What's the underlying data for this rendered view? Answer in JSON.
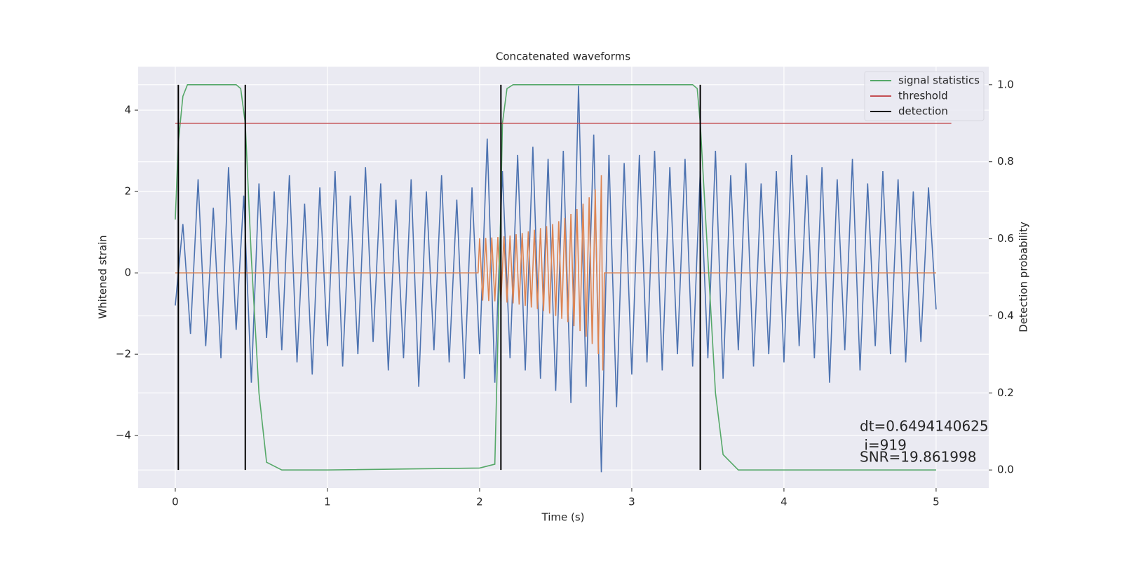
{
  "chart_data": {
    "type": "line",
    "title": "Concatenated waveforms",
    "xlabel": "Time (s)",
    "ylabel": "Whitened strain",
    "y2label": "Detection probability",
    "xlim": [
      -0.244,
      5.346
    ],
    "ylim": [
      -5.29,
      5.07
    ],
    "y2lim": [
      -0.047,
      1.047
    ],
    "xticks": [
      0,
      1,
      2,
      3,
      4,
      5
    ],
    "yticks": [
      {
        "value": -4,
        "label": "−4"
      },
      {
        "value": -2,
        "label": "−2"
      },
      0,
      2,
      4
    ],
    "y2ticks": [
      {
        "value": 0,
        "label": "0.0"
      },
      {
        "value": 0.2,
        "label": "0.2"
      },
      {
        "value": 0.4,
        "label": "0.4"
      },
      {
        "value": 0.6,
        "label": "0.6"
      },
      {
        "value": 0.8,
        "label": "0.8"
      },
      {
        "value": 1,
        "label": "1.0"
      }
    ],
    "grid": true,
    "legend": "upper right",
    "annotations": [
      "dt=0.6494140625",
      " i=919",
      "SNR=19.861998"
    ],
    "series": [
      {
        "color": "#4c72b0",
        "x": [
          0,
          0.05,
          0.1,
          0.15,
          0.2,
          0.25,
          0.3,
          0.35,
          0.4,
          0.45,
          0.5,
          0.55,
          0.6,
          0.65,
          0.7,
          0.75,
          0.8,
          0.85,
          0.9,
          0.95,
          1,
          1.05,
          1.1,
          1.15,
          1.2,
          1.25,
          1.3,
          1.35,
          1.4,
          1.45,
          1.5,
          1.55,
          1.6,
          1.65,
          1.7,
          1.75,
          1.8,
          1.85,
          1.9,
          1.95,
          2,
          2.05,
          2.1,
          2.15,
          2.2,
          2.25,
          2.3,
          2.35,
          2.4,
          2.45,
          2.5,
          2.55,
          2.6,
          2.65,
          2.7,
          2.75,
          2.8,
          2.85,
          2.9,
          2.95,
          3,
          3.05,
          3.1,
          3.15,
          3.2,
          3.25,
          3.3,
          3.35,
          3.4,
          3.45,
          3.5,
          3.55,
          3.6,
          3.65,
          3.7,
          3.75,
          3.8,
          3.85,
          3.9,
          3.95,
          4,
          4.05,
          4.1,
          4.15,
          4.2,
          4.25,
          4.3,
          4.35,
          4.4,
          4.45,
          4.5,
          4.55,
          4.6,
          4.65,
          4.7,
          4.75,
          4.8,
          4.85,
          4.9,
          4.95,
          5
        ],
        "values": [
          -0.8,
          1.2,
          -1.5,
          2.3,
          -1.8,
          1.6,
          -2.1,
          2.6,
          -1.4,
          1.9,
          -2.7,
          2.2,
          -1.6,
          2.0,
          -1.9,
          2.4,
          -2.2,
          1.7,
          -2.5,
          2.1,
          -1.8,
          2.5,
          -2.3,
          1.9,
          -2.0,
          2.6,
          -1.7,
          2.2,
          -2.4,
          1.8,
          -2.1,
          2.3,
          -2.8,
          2.0,
          -1.9,
          2.4,
          -2.2,
          1.8,
          -2.6,
          2.1,
          -2.0,
          3.3,
          -2.7,
          2.5,
          -2.1,
          2.9,
          -2.4,
          3.1,
          -2.6,
          2.8,
          -2.9,
          3.0,
          -3.2,
          4.6,
          -2.8,
          3.4,
          -4.9,
          2.9,
          -3.3,
          2.7,
          -2.5,
          2.9,
          -2.2,
          3.0,
          -2.4,
          2.6,
          -2.0,
          2.8,
          -2.3,
          2.5,
          -2.1,
          3.0,
          -2.6,
          2.4,
          -1.9,
          2.7,
          -2.3,
          2.2,
          -2.0,
          2.5,
          -2.2,
          2.9,
          -1.8,
          2.4,
          -2.1,
          2.6,
          -2.7,
          2.3,
          -1.9,
          2.8,
          -2.4,
          2.2,
          -1.8,
          2.5,
          -2.0,
          2.3,
          -2.2,
          2.0,
          -1.7,
          2.1,
          -0.9
        ]
      },
      {
        "color": "#dd8452",
        "x": [
          0,
          1.99,
          2.0,
          2.02,
          2.04,
          2.06,
          2.08,
          2.1,
          2.12,
          2.14,
          2.16,
          2.18,
          2.2,
          2.22,
          2.24,
          2.26,
          2.28,
          2.3,
          2.32,
          2.34,
          2.36,
          2.38,
          2.4,
          2.42,
          2.44,
          2.46,
          2.48,
          2.5,
          2.52,
          2.54,
          2.56,
          2.58,
          2.6,
          2.62,
          2.64,
          2.66,
          2.68,
          2.7,
          2.72,
          2.74,
          2.76,
          2.78,
          2.8,
          2.81,
          2.82,
          5.0
        ],
        "values": [
          0,
          0,
          0.85,
          -0.68,
          0.86,
          -0.69,
          0.87,
          -0.7,
          0.88,
          -0.71,
          0.9,
          -0.73,
          0.92,
          -0.75,
          0.95,
          -0.78,
          0.98,
          -0.81,
          1.02,
          -0.85,
          1.06,
          -0.89,
          1.1,
          -0.94,
          1.15,
          -1.0,
          1.2,
          -1.06,
          1.27,
          -1.13,
          1.35,
          -1.21,
          1.45,
          -1.31,
          1.57,
          -1.43,
          1.7,
          -1.57,
          1.86,
          -1.75,
          2.05,
          -2.0,
          2.4,
          -2.4,
          0,
          0
        ]
      },
      {
        "name": "signal statistics",
        "color": "#55a868",
        "axis": "y2",
        "x": [
          0,
          0.02,
          0.05,
          0.08,
          0.1,
          0.2,
          0.3,
          0.4,
          0.43,
          0.46,
          0.5,
          0.55,
          0.6,
          0.7,
          1.0,
          2.0,
          2.1,
          2.13,
          2.15,
          2.18,
          2.22,
          2.3,
          3.0,
          3.4,
          3.43,
          3.45,
          3.5,
          3.55,
          3.6,
          3.7,
          4.0,
          5.0
        ],
        "values": [
          0.65,
          0.85,
          0.97,
          1.0,
          1.0,
          1.0,
          1.0,
          1.0,
          0.99,
          0.9,
          0.55,
          0.2,
          0.02,
          0.0,
          0.0,
          0.005,
          0.015,
          0.5,
          0.9,
          0.99,
          1.0,
          1.0,
          1.0,
          1.0,
          0.99,
          0.9,
          0.55,
          0.2,
          0.04,
          0.0,
          0.0,
          0.0
        ]
      },
      {
        "name": "threshold",
        "color": "#c44e52",
        "axis": "y2",
        "x": [
          0,
          5.1
        ],
        "values": [
          0.9,
          0.9
        ]
      },
      {
        "name": "detection",
        "color": "#000000",
        "axis": "y2",
        "type": "vlines",
        "x": [
          0.02,
          0.46,
          2.14,
          3.45
        ],
        "ymin": 0,
        "ymax": 1
      }
    ]
  }
}
